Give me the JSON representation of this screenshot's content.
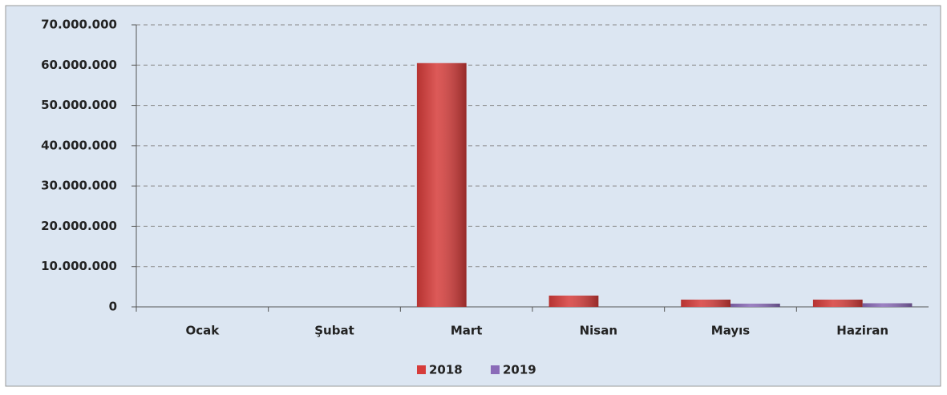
{
  "chart_data": {
    "type": "bar",
    "categories": [
      "Ocak",
      "Şubat",
      "Mart",
      "Nisan",
      "Mayıs",
      "Haziran"
    ],
    "series": [
      {
        "name": "2018",
        "color": "#d63c3a",
        "values": [
          0,
          0,
          60500000,
          2800000,
          1800000,
          1800000
        ]
      },
      {
        "name": "2019",
        "color": "#8a6bb8",
        "values": [
          0,
          0,
          0,
          0,
          800000,
          900000
        ]
      }
    ],
    "ylim": [
      0,
      70000000
    ],
    "yticks": [
      0,
      {
        "value": 10000000,
        "label": "10.000.000"
      },
      {
        "value": 20000000,
        "label": "20.000.000"
      },
      {
        "value": 30000000,
        "label": "30.000.000"
      },
      {
        "value": 40000000,
        "label": "40.000.000"
      },
      {
        "value": 50000000,
        "label": "50.000.000"
      },
      {
        "value": 60000000,
        "label": "60.000.000"
      },
      {
        "value": 70000000,
        "label": "70.000.000"
      }
    ],
    "grid": true,
    "legend": "bottom"
  }
}
